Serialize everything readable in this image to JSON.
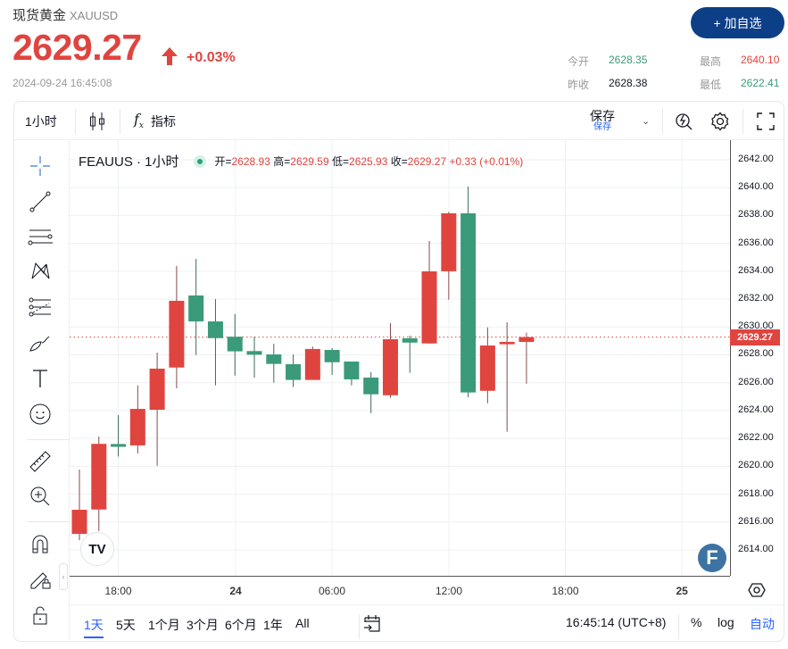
{
  "header": {
    "name": "现货黄金",
    "symbol": "XAUUSD",
    "price": "2629.27",
    "change_pct": "+0.03%",
    "timestamp": "2024-09-24 16:45:08",
    "add_watchlist": "+ 加自选",
    "quotes": [
      {
        "label": "今开",
        "value": "2628.35",
        "color": "#3a9a7a"
      },
      {
        "label": "最高",
        "value": "2640.10",
        "color": "#e0443f"
      },
      {
        "label": "昨收",
        "value": "2628.38",
        "color": "#131722"
      },
      {
        "label": "最低",
        "value": "2622.41",
        "color": "#3a9a7a"
      }
    ]
  },
  "toolbar": {
    "interval": "1小时",
    "indicators": "指标",
    "save": "保存",
    "save_sub": "保存"
  },
  "left_tools": [
    "crosshair-icon",
    "trend-line-icon",
    "parallel-lines-icon",
    "pattern-icon",
    "fib-icon",
    "brush-icon",
    "text-icon",
    "emoji-icon",
    "ruler-icon",
    "zoom-in-icon",
    "magnet-icon",
    "lock-drawings-icon",
    "lock-icon"
  ],
  "legend": {
    "symbol": "FEAUUS · 1小时",
    "open_label": "开=",
    "open": "2628.93",
    "high_label": "高=",
    "high": "2629.59",
    "low_label": "低=",
    "low": "2625.93",
    "close_label": "收=",
    "close": "2629.27",
    "change": "+0.33 (+0.01%)"
  },
  "colors": {
    "up": "#e0443f",
    "down": "#3a9a7a",
    "accent": "#0d3f86"
  },
  "chart_data": {
    "type": "candlestick",
    "ylim": [
      2612.5,
      2643.4
    ],
    "y_ticks": [
      "2642.00",
      "2640.00",
      "2638.00",
      "2636.00",
      "2634.00",
      "2632.00",
      "2630.00",
      "2628.00",
      "2626.00",
      "2624.00",
      "2622.00",
      "2620.00",
      "2618.00",
      "2616.00",
      "2614.00"
    ],
    "x_ticks": [
      {
        "label": "18:00",
        "bar": 2
      },
      {
        "label": "24",
        "bar": 8
      },
      {
        "label": "06:00",
        "bar": 13
      },
      {
        "label": "12:00",
        "bar": 19
      },
      {
        "label": "18:00",
        "bar": 25
      },
      {
        "label": "25",
        "bar": 31
      }
    ],
    "current_price": "2629.27",
    "candles": [
      [
        2615.15,
        2619.77,
        2614.7,
        2616.88
      ],
      [
        2616.9,
        2622.14,
        2615.35,
        2621.61
      ],
      [
        2621.6,
        2623.67,
        2620.7,
        2621.4
      ],
      [
        2621.5,
        2625.8,
        2620.92,
        2624.12
      ],
      [
        2624.06,
        2628.16,
        2620.04,
        2627.01
      ],
      [
        2627.09,
        2634.38,
        2625.6,
        2631.88
      ],
      [
        2632.26,
        2634.89,
        2627.99,
        2630.4
      ],
      [
        2630.4,
        2632.0,
        2625.81,
        2629.2
      ],
      [
        2629.3,
        2630.93,
        2626.51,
        2628.25
      ],
      [
        2628.27,
        2629.3,
        2626.35,
        2628.01
      ],
      [
        2628.03,
        2628.8,
        2626.0,
        2627.35
      ],
      [
        2627.33,
        2628.03,
        2625.7,
        2626.2
      ],
      [
        2626.2,
        2628.59,
        2626.2,
        2628.42
      ],
      [
        2628.35,
        2628.48,
        2626.56,
        2627.47
      ],
      [
        2627.52,
        2627.52,
        2625.81,
        2626.24
      ],
      [
        2626.37,
        2626.75,
        2623.82,
        2625.17
      ],
      [
        2625.1,
        2630.27,
        2624.91,
        2629.12
      ],
      [
        2629.19,
        2629.38,
        2626.71,
        2628.88
      ],
      [
        2628.82,
        2636.17,
        2628.8,
        2633.99
      ],
      [
        2634.0,
        2638.26,
        2631.96,
        2638.16
      ],
      [
        2638.16,
        2640.08,
        2624.96,
        2625.3
      ],
      [
        2625.42,
        2629.97,
        2624.53,
        2628.67
      ],
      [
        2628.76,
        2630.34,
        2622.48,
        2628.93
      ],
      [
        2628.93,
        2629.59,
        2625.93,
        2629.27
      ]
    ]
  },
  "ranges": [
    "1天",
    "5天",
    "1个月",
    "3个月",
    "6个月",
    "1年",
    "All"
  ],
  "active_range": "1天",
  "clock": "16:45:14 (UTC+8)",
  "pct": "%",
  "log": "log",
  "auto": "自动"
}
